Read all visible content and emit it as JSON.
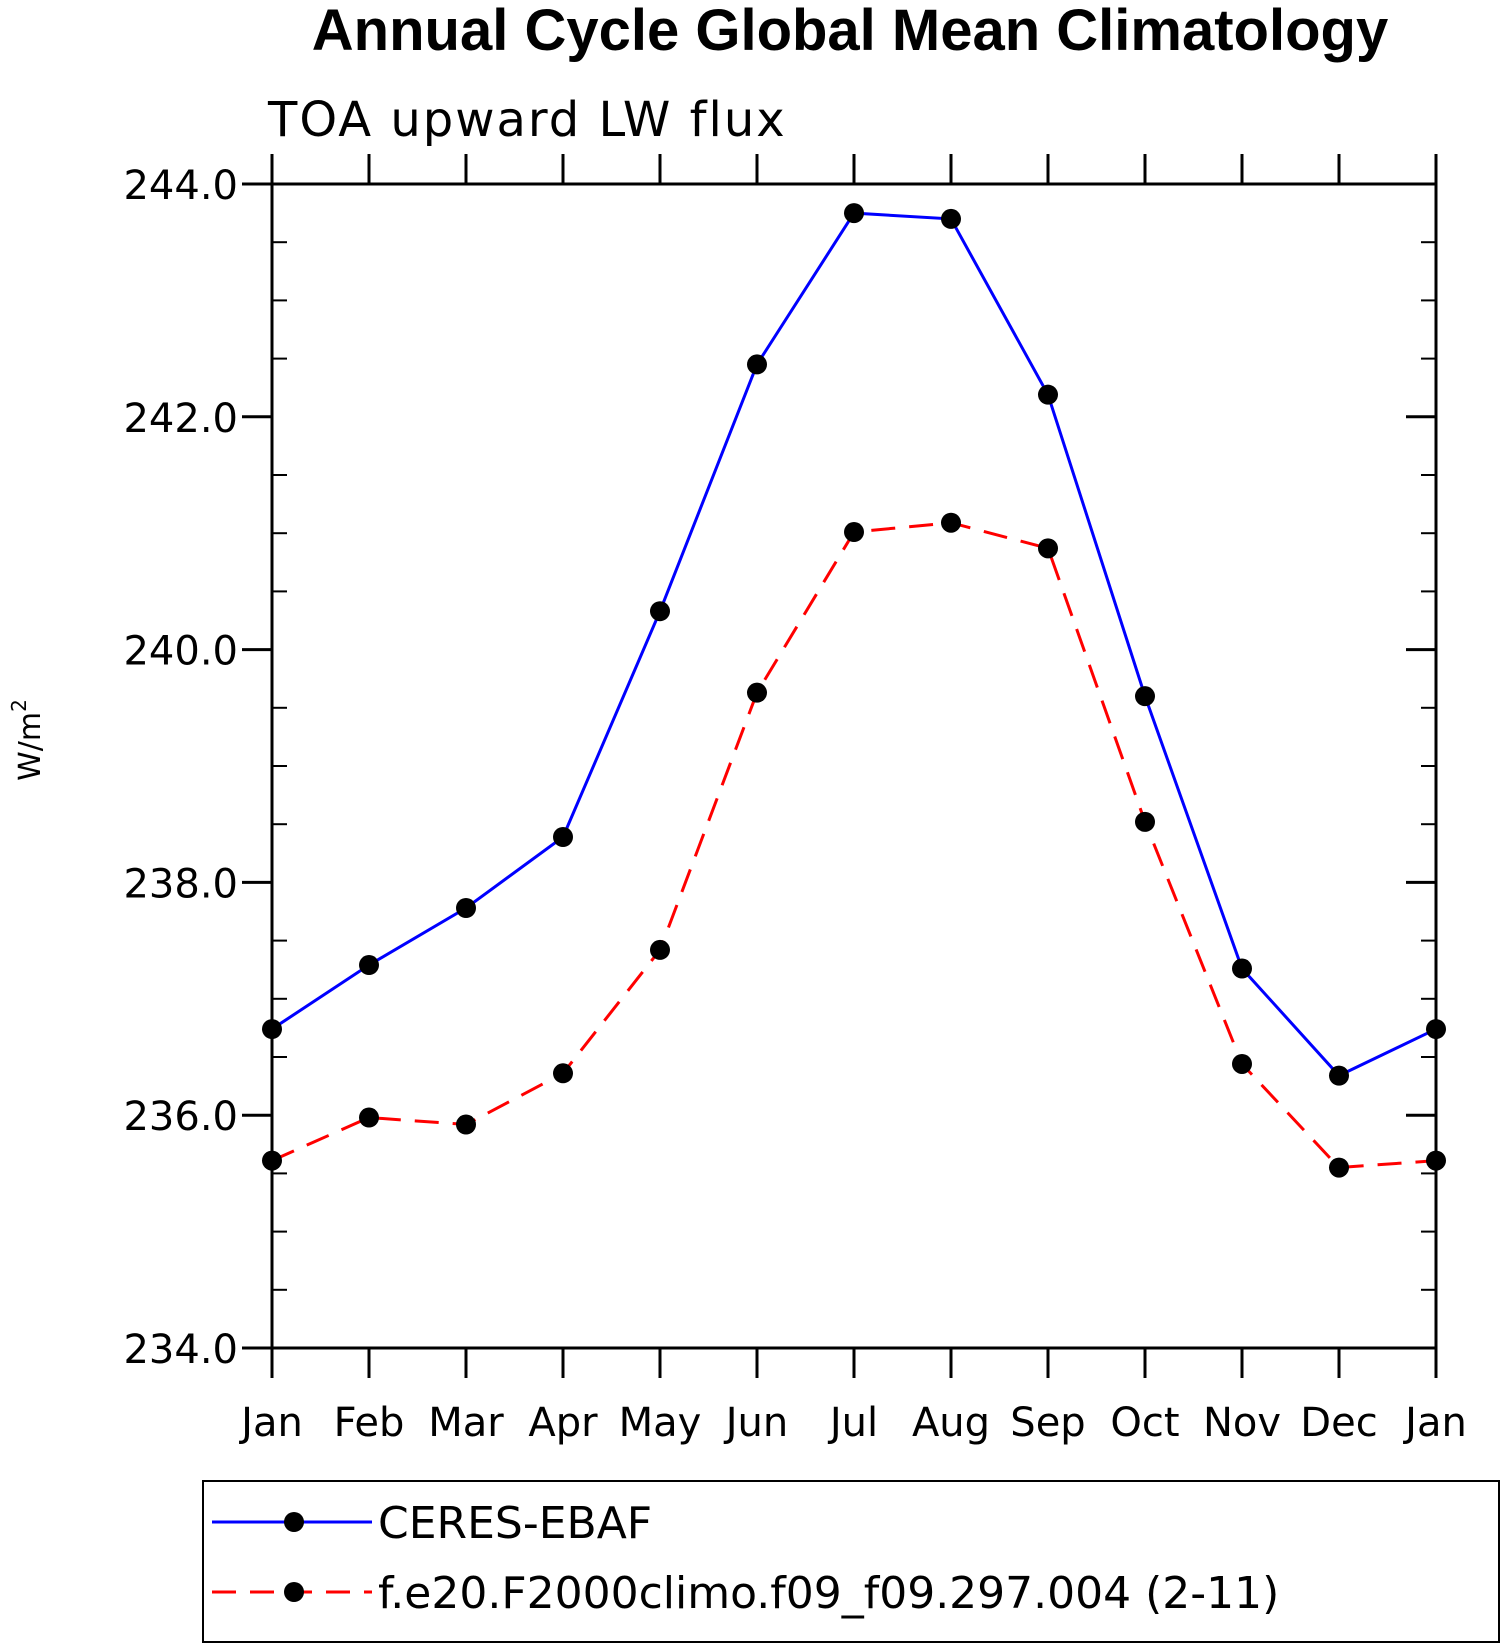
{
  "chart_data": {
    "type": "line",
    "title": "Annual Cycle Global Mean Climatology",
    "subtitle": "TOA upward LW flux",
    "ylabel_base": "W/m",
    "ylabel_sup": "2",
    "categories": [
      "Jan",
      "Feb",
      "Mar",
      "Apr",
      "May",
      "Jun",
      "Jul",
      "Aug",
      "Sep",
      "Oct",
      "Nov",
      "Dec",
      "Jan"
    ],
    "ylim": [
      234.0,
      244.0
    ],
    "yticks": [
      "234.0",
      "236.0",
      "238.0",
      "240.0",
      "242.0",
      "244.0"
    ],
    "grid": false,
    "legend_position": "bottom",
    "series": [
      {
        "name": "CERES-EBAF",
        "color": "#0000ff",
        "dash": "solid",
        "values": [
          236.74,
          237.29,
          237.78,
          238.39,
          240.33,
          242.45,
          243.75,
          243.7,
          242.19,
          239.6,
          237.26,
          236.34,
          236.74
        ]
      },
      {
        "name": "f.e20.F2000climo.f09_f09.297.004 (2-11)",
        "color": "#ff0000",
        "dash": "dashed",
        "values": [
          235.61,
          235.98,
          235.92,
          236.36,
          237.42,
          239.63,
          241.01,
          241.09,
          240.87,
          238.52,
          236.44,
          235.55,
          235.61
        ]
      }
    ]
  }
}
